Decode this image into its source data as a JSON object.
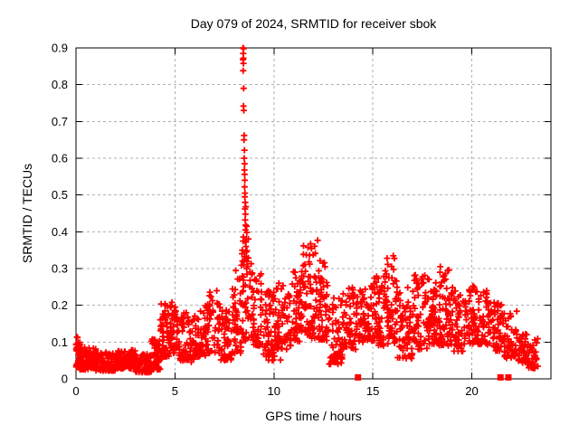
{
  "chart_data": {
    "type": "scatter",
    "title": "Day 079 of 2024, SRMTID for receiver sbok",
    "xlabel": "GPS time / hours",
    "ylabel": "SRMTID / TECUs",
    "xlim": [
      0,
      24
    ],
    "ylim": [
      0,
      0.9
    ],
    "xticks": {
      "values": [
        0,
        5,
        10,
        15,
        20
      ],
      "labels": [
        "0",
        "5",
        "10",
        "15",
        "20"
      ]
    },
    "yticks": {
      "values": [
        0,
        0.1,
        0.2,
        0.3,
        0.4,
        0.5,
        0.6,
        0.7,
        0.8,
        0.9
      ],
      "labels": [
        "0",
        "0.1",
        "0.2",
        "0.3",
        "0.4",
        "0.5",
        "0.6",
        "0.7",
        "0.8",
        "0.9"
      ]
    },
    "grid": {
      "show": true,
      "color": "#b0b0b0",
      "dash": "3,3"
    },
    "axis_color": "#000000",
    "legend": "none",
    "marker": {
      "shape": "plus",
      "color": "#ff0000",
      "size": 7,
      "stroke_width": 1.8
    },
    "series": [
      {
        "name": "srmtid-scatter-band",
        "render": "band-scatter",
        "seed": 79,
        "segments": [
          [
            0.0,
            0.18,
            0.03,
            0.095,
            22
          ],
          [
            0.05,
            0.25,
            0.08,
            0.12,
            10
          ],
          [
            0.18,
            1.0,
            0.025,
            0.085,
            95
          ],
          [
            1.0,
            2.0,
            0.022,
            0.072,
            115
          ],
          [
            2.0,
            3.0,
            0.028,
            0.078,
            115
          ],
          [
            3.0,
            3.8,
            0.018,
            0.068,
            90
          ],
          [
            3.8,
            4.25,
            0.025,
            0.11,
            55
          ],
          [
            4.25,
            4.7,
            0.06,
            0.205,
            55
          ],
          [
            4.7,
            5.1,
            0.07,
            0.215,
            50
          ],
          [
            5.1,
            5.6,
            0.05,
            0.19,
            45
          ],
          [
            5.6,
            6.1,
            0.045,
            0.175,
            45
          ],
          [
            6.1,
            6.6,
            0.06,
            0.2,
            45
          ],
          [
            6.6,
            7.3,
            0.07,
            0.245,
            55
          ],
          [
            7.3,
            7.9,
            0.05,
            0.19,
            48
          ],
          [
            7.9,
            8.35,
            0.07,
            0.3,
            45
          ],
          [
            8.35,
            8.75,
            0.1,
            0.39,
            40
          ],
          [
            8.75,
            9.4,
            0.09,
            0.32,
            55
          ],
          [
            9.4,
            10.1,
            0.06,
            0.24,
            58
          ],
          [
            9.6,
            10.6,
            0.045,
            0.11,
            14
          ],
          [
            10.1,
            10.9,
            0.08,
            0.26,
            62
          ],
          [
            10.9,
            11.45,
            0.1,
            0.3,
            55
          ],
          [
            11.45,
            12.25,
            0.11,
            0.38,
            75
          ],
          [
            12.25,
            12.75,
            0.1,
            0.345,
            55
          ],
          [
            12.75,
            13.45,
            0.04,
            0.22,
            60
          ],
          [
            13.45,
            14.2,
            0.08,
            0.25,
            62
          ],
          [
            14.2,
            15.05,
            0.1,
            0.255,
            65
          ],
          [
            15.05,
            15.6,
            0.09,
            0.28,
            52
          ],
          [
            15.6,
            16.2,
            0.09,
            0.335,
            56
          ],
          [
            16.2,
            17.0,
            0.055,
            0.255,
            66
          ],
          [
            17.0,
            17.8,
            0.08,
            0.3,
            66
          ],
          [
            17.8,
            18.3,
            0.095,
            0.28,
            55
          ],
          [
            18.3,
            18.85,
            0.09,
            0.31,
            56
          ],
          [
            18.85,
            19.55,
            0.075,
            0.25,
            60
          ],
          [
            19.55,
            20.3,
            0.095,
            0.255,
            60
          ],
          [
            20.3,
            21.0,
            0.09,
            0.24,
            56
          ],
          [
            21.0,
            21.6,
            0.075,
            0.21,
            50
          ],
          [
            21.6,
            22.3,
            0.055,
            0.185,
            50
          ],
          [
            22.3,
            22.85,
            0.04,
            0.135,
            42
          ],
          [
            22.85,
            23.35,
            0.028,
            0.11,
            36
          ]
        ]
      },
      {
        "name": "srmtid-spike-8p5h",
        "render": "points",
        "points": [
          [
            8.44,
            0.9
          ],
          [
            8.47,
            0.898
          ],
          [
            8.45,
            0.885
          ],
          [
            8.46,
            0.872
          ],
          [
            8.44,
            0.868
          ],
          [
            8.46,
            0.858
          ],
          [
            8.45,
            0.838
          ],
          [
            8.47,
            0.79
          ],
          [
            8.46,
            0.742
          ],
          [
            8.48,
            0.73
          ],
          [
            8.5,
            0.662
          ],
          [
            8.49,
            0.65
          ],
          [
            8.51,
            0.622
          ],
          [
            8.5,
            0.6
          ],
          [
            8.52,
            0.585
          ],
          [
            8.51,
            0.568
          ],
          [
            8.52,
            0.556
          ],
          [
            8.53,
            0.54
          ],
          [
            8.52,
            0.522
          ],
          [
            8.54,
            0.505
          ],
          [
            8.53,
            0.495
          ],
          [
            8.55,
            0.48
          ],
          [
            8.54,
            0.462
          ],
          [
            8.56,
            0.448
          ],
          [
            8.55,
            0.432
          ],
          [
            8.57,
            0.418
          ],
          [
            8.56,
            0.405
          ],
          [
            8.58,
            0.468
          ],
          [
            8.57,
            0.372
          ],
          [
            8.59,
            0.36
          ],
          [
            8.6,
            0.345
          ],
          [
            8.61,
            0.33
          ],
          [
            8.62,
            0.415
          ],
          [
            8.63,
            0.398
          ],
          [
            8.4,
            0.35
          ],
          [
            8.41,
            0.32
          ],
          [
            8.62,
            0.3
          ],
          [
            8.64,
            0.285
          ]
        ]
      },
      {
        "name": "zero-flags",
        "render": "squares",
        "color": "#ff0000",
        "size": 7,
        "points": [
          [
            14.25,
            0.004
          ],
          [
            21.45,
            0.004
          ],
          [
            21.85,
            0.004
          ]
        ]
      }
    ]
  }
}
